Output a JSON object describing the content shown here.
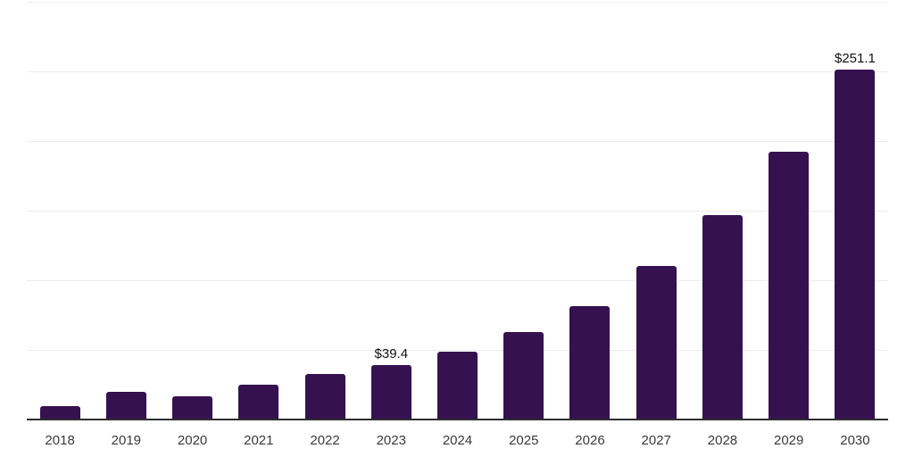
{
  "chart_data": {
    "type": "bar",
    "title": "",
    "xlabel": "",
    "ylabel": "",
    "categories": [
      "2018",
      "2019",
      "2020",
      "2021",
      "2022",
      "2023",
      "2024",
      "2025",
      "2026",
      "2027",
      "2028",
      "2029",
      "2030"
    ],
    "values": [
      9.8,
      19.8,
      16.8,
      24.7,
      32.6,
      39.4,
      48.5,
      62.6,
      81.3,
      110.0,
      146.8,
      192.0,
      251.1
    ],
    "data_labels": {
      "2023": "$39.4",
      "2030": "$251.1"
    },
    "ylim": [
      0,
      300
    ],
    "gridline_step": 50,
    "grid": true,
    "y_tick_labels_shown": false,
    "legend_position": "none",
    "colors": {
      "bar": "#351150",
      "axis_line": "#2e2e2e",
      "gridline": "#ececec",
      "tick_label": "#3a3a3a",
      "data_label": "#111111",
      "background": "#ffffff"
    }
  }
}
